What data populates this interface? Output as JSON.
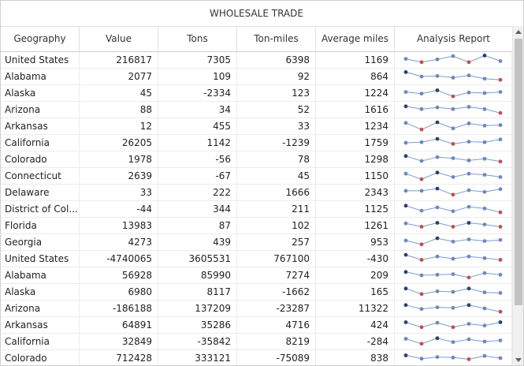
{
  "grid": {
    "title": "WHOLESALE TRADE",
    "columns": [
      "Geography",
      "Value",
      "Tons",
      "Ton-miles",
      "Average miles",
      "Analysis Report"
    ],
    "rows": [
      {
        "geo": "United States",
        "value": "216817",
        "tons": "7305",
        "tonmiles": "6398",
        "avgmiles": "1169",
        "spark": [
          0.6,
          0.3,
          0.55,
          0.85,
          0.3,
          0.9,
          0.4
        ]
      },
      {
        "geo": "Alabama",
        "value": "2077",
        "tons": "109",
        "tonmiles": "92",
        "avgmiles": "864",
        "spark": [
          0.9,
          0.5,
          0.55,
          0.4,
          0.6,
          0.3,
          0.2
        ]
      },
      {
        "geo": "Alaska",
        "value": "45",
        "tons": "-2334",
        "tonmiles": "123",
        "avgmiles": "1224",
        "spark": [
          0.6,
          0.45,
          0.75,
          0.2,
          0.55,
          0.5,
          0.6
        ]
      },
      {
        "geo": "Arizona",
        "value": "88",
        "tons": "34",
        "tonmiles": "52",
        "avgmiles": "1616",
        "spark": [
          0.8,
          0.55,
          0.7,
          0.55,
          0.75,
          0.55,
          0.2
        ]
      },
      {
        "geo": "Arkansas",
        "value": "12",
        "tons": "455",
        "tonmiles": "33",
        "avgmiles": "1234",
        "spark": [
          0.8,
          0.2,
          0.85,
          0.3,
          0.75,
          0.55,
          0.6
        ]
      },
      {
        "geo": "California",
        "value": "26205",
        "tons": "1142",
        "tonmiles": "-1239",
        "avgmiles": "1759",
        "spark": [
          0.5,
          0.55,
          0.85,
          0.4,
          0.6,
          0.55,
          0.8
        ]
      },
      {
        "geo": "Colorado",
        "value": "1978",
        "tons": "-56",
        "tonmiles": "78",
        "avgmiles": "1298",
        "spark": [
          0.8,
          0.35,
          0.7,
          0.6,
          0.4,
          0.55,
          0.3
        ]
      },
      {
        "geo": "Connecticut",
        "value": "2639",
        "tons": "-67",
        "tonmiles": "45",
        "avgmiles": "1150",
        "spark": [
          0.7,
          0.2,
          0.8,
          0.4,
          0.7,
          0.6,
          0.4
        ]
      },
      {
        "geo": "Delaware",
        "value": "33",
        "tons": "222",
        "tonmiles": "1666",
        "avgmiles": "2343",
        "spark": [
          0.65,
          0.65,
          0.85,
          0.3,
          0.7,
          0.55,
          0.8
        ]
      },
      {
        "geo": "District of Col...",
        "value": "-44",
        "tons": "344",
        "tonmiles": "211",
        "avgmiles": "1125",
        "spark": [
          0.8,
          0.35,
          0.65,
          0.3,
          0.7,
          0.55,
          0.2
        ]
      },
      {
        "geo": "Florida",
        "value": "13983",
        "tons": "87",
        "tonmiles": "102",
        "avgmiles": "1261",
        "spark": [
          0.7,
          0.4,
          0.75,
          0.4,
          0.75,
          0.6,
          0.4
        ]
      },
      {
        "geo": "Georgia",
        "value": "4273",
        "tons": "439",
        "tonmiles": "257",
        "avgmiles": "953",
        "spark": [
          0.65,
          0.3,
          0.85,
          0.55,
          0.75,
          0.6,
          0.7
        ]
      },
      {
        "geo": "United States",
        "value": "-4740065",
        "tons": "3605531",
        "tonmiles": "767100",
        "avgmiles": "-430",
        "spark": [
          0.85,
          0.4,
          0.7,
          0.5,
          0.7,
          0.55,
          0.4
        ]
      },
      {
        "geo": "Alabama",
        "value": "56928",
        "tons": "85990",
        "tonmiles": "7274",
        "avgmiles": "209",
        "spark": [
          0.8,
          0.5,
          0.55,
          0.6,
          0.3,
          0.7,
          0.55
        ]
      },
      {
        "geo": "Alaska",
        "value": "6980",
        "tons": "8117",
        "tonmiles": "-1662",
        "avgmiles": "165",
        "spark": [
          0.8,
          0.3,
          0.55,
          0.5,
          0.8,
          0.45,
          0.4
        ]
      },
      {
        "geo": "Arizona",
        "value": "-186188",
        "tons": "137209",
        "tonmiles": "-23287",
        "avgmiles": "11322",
        "spark": [
          0.8,
          0.45,
          0.6,
          0.55,
          0.8,
          0.5,
          0.2
        ]
      },
      {
        "geo": "Arkansas",
        "value": "64891",
        "tons": "35286",
        "tonmiles": "4716",
        "avgmiles": "424",
        "spark": [
          0.75,
          0.3,
          0.7,
          0.3,
          0.6,
          0.45,
          0.75
        ]
      },
      {
        "geo": "California",
        "value": "32849",
        "tons": "-35842",
        "tonmiles": "8219",
        "avgmiles": "-284",
        "spark": [
          0.75,
          0.3,
          0.8,
          0.45,
          0.7,
          0.5,
          0.6
        ]
      },
      {
        "geo": "Colorado",
        "value": "712428",
        "tons": "333121",
        "tonmiles": "-75089",
        "avgmiles": "838",
        "spark": [
          0.75,
          0.45,
          0.6,
          0.55,
          0.4,
          0.7,
          0.5
        ]
      }
    ]
  },
  "colors": {
    "spark_line": "#7f9ac7",
    "spark_marker": "#6b88bf",
    "spark_high": "#2b3f6e",
    "spark_low": "#c0504d"
  },
  "icons": {
    "scroll_up": "chevron-up-icon",
    "scroll_down": "chevron-down-icon"
  }
}
